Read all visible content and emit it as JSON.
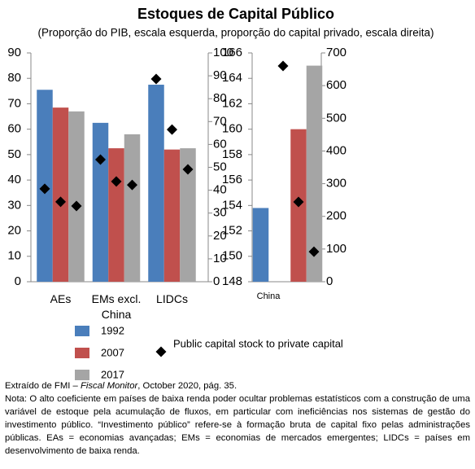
{
  "chart_data": [
    {
      "type": "bar",
      "title": "Estoques de Capital Público",
      "subtitle": "(Proporção do PIB, escala esquerda, proporção do capital privado, escala direita)",
      "categories": [
        "AEs",
        "EMs excl. China",
        "LIDCs"
      ],
      "ylim": [
        0,
        90
      ],
      "yticks": [
        0,
        10,
        20,
        30,
        40,
        50,
        60,
        70,
        80,
        90
      ],
      "y2lim": [
        0,
        100
      ],
      "y2ticks": [
        0,
        10,
        20,
        30,
        40,
        50,
        60,
        70,
        80,
        90,
        100
      ],
      "series": [
        {
          "name": "1992",
          "color": "#4a7ebb",
          "values": [
            75.5,
            62.5,
            77.5
          ]
        },
        {
          "name": "2007",
          "color": "#c0504d",
          "values": [
            68.5,
            52.5,
            52
          ]
        },
        {
          "name": "2017",
          "color": "#a5a5a5",
          "values": [
            67,
            58,
            52.5
          ]
        },
        {
          "name": "Public capital stock to private capital",
          "color": "#000000",
          "marker": "diamond",
          "axis": "y2",
          "values": [
            [
              40.6,
              34.9,
              33.1
            ],
            [
              53.4,
              43.8,
              42.3
            ],
            [
              88.6,
              66.5,
              49.1
            ]
          ]
        }
      ]
    },
    {
      "type": "bar",
      "categories": [
        "China"
      ],
      "ylim": [
        148,
        166
      ],
      "yticks": [
        148,
        150,
        152,
        154,
        156,
        158,
        160,
        162,
        164,
        166
      ],
      "y2lim": [
        0,
        700
      ],
      "y2ticks": [
        0,
        100,
        200,
        300,
        400,
        500,
        600,
        700
      ],
      "series": [
        {
          "color": "#4a7ebb",
          "values": [
            153.8
          ]
        },
        {
          "color": "#c0504d",
          "values": [
            160
          ]
        },
        {
          "color": "#a5a5a5",
          "values": [
            165
          ]
        },
        {
          "color": "#000000",
          "marker": "diamond",
          "axis": "y2",
          "values": [
            [
              660,
              244,
              92
            ]
          ]
        }
      ]
    }
  ],
  "source": {
    "prefix": "Extraído de FMI – ",
    "italic": "Fiscal Monitor",
    "suffix": ", October 2020, pág. 35."
  },
  "note": "Nota: O alto coeficiente em países de baixa renda poder ocultar problemas estatísticos com a construção de uma variável de estoque pela acumulação de fluxos, em particular com ineficiências nos sistemas de gestão do investimento público. “Investimento público” refere-se à formação bruta de capital fixo pelas administrações públicas. EAs = economias avançadas; EMs = economias de mercados emergentes; LIDCs = países em desenvolvimento de baixa renda."
}
